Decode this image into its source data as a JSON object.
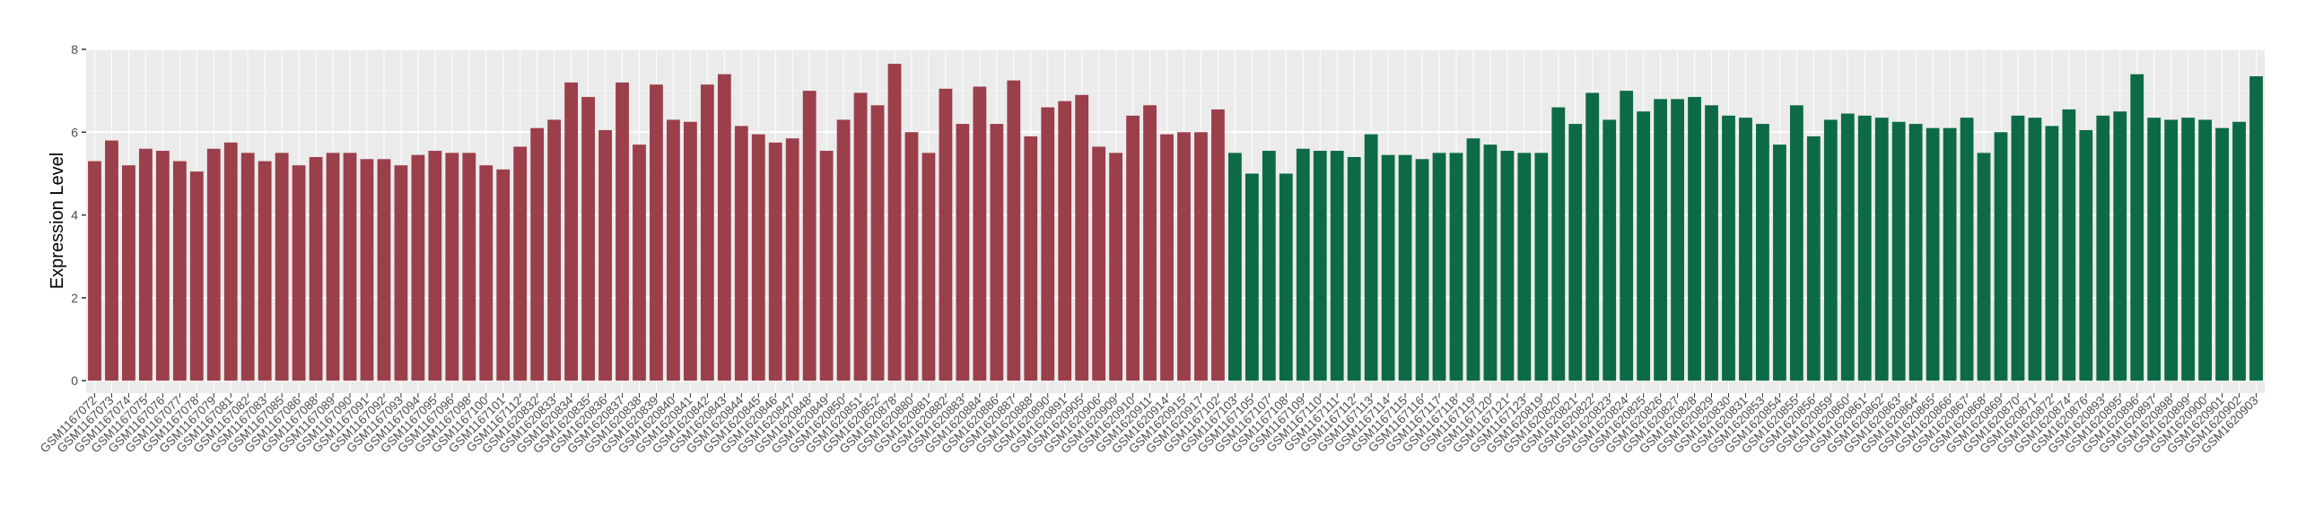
{
  "chart_data": {
    "type": "bar",
    "ylabel": "Expression Level",
    "xlabel": "",
    "ylim": [
      -0.3,
      8
    ],
    "yticks": [
      0,
      2,
      4,
      6,
      8
    ],
    "grid": true,
    "legend": "none",
    "group_colors": [
      "#9b3f4b",
      "#0c6b45"
    ],
    "categories": [
      "GSM1167072",
      "GSM1167073",
      "GSM1167074",
      "GSM1167075",
      "GSM1167076",
      "GSM1167077",
      "GSM1167078",
      "GSM1167079",
      "GSM1167081",
      "GSM1167082",
      "GSM1167083",
      "GSM1167085",
      "GSM1167086",
      "GSM1167088",
      "GSM1167089",
      "GSM1167090",
      "GSM1167091",
      "GSM1167092",
      "GSM1167093",
      "GSM1167094",
      "GSM1167095",
      "GSM1167096",
      "GSM1167098",
      "GSM1167100",
      "GSM1167101",
      "GSM1167112",
      "GSM1620832",
      "GSM1620833",
      "GSM1620834",
      "GSM1620835",
      "GSM1620836",
      "GSM1620837",
      "GSM1620838",
      "GSM1620839",
      "GSM1620840",
      "GSM1620841",
      "GSM1620842",
      "GSM1620843",
      "GSM1620844",
      "GSM1620845",
      "GSM1620846",
      "GSM1620847",
      "GSM1620848",
      "GSM1620849",
      "GSM1620850",
      "GSM1620851",
      "GSM1620852",
      "GSM1620878",
      "GSM1620880",
      "GSM1620881",
      "GSM1620882",
      "GSM1620883",
      "GSM1620884",
      "GSM1620886",
      "GSM1620887",
      "GSM1620888",
      "GSM1620890",
      "GSM1620891",
      "GSM1620905",
      "GSM1620906",
      "GSM1620909",
      "GSM1620910",
      "GSM1620911",
      "GSM1620914",
      "GSM1620915",
      "GSM1620917",
      "GSM1167102",
      "GSM1167103",
      "GSM1167105",
      "GSM1167107",
      "GSM1167108",
      "GSM1167109",
      "GSM1167110",
      "GSM1167111",
      "GSM1167112",
      "GSM1167113",
      "GSM1167114",
      "GSM1167115",
      "GSM1167116",
      "GSM1167117",
      "GSM1167118",
      "GSM1167119",
      "GSM1167120",
      "GSM1167121",
      "GSM1167123",
      "GSM1620819",
      "GSM1620820",
      "GSM1620821",
      "GSM1620822",
      "GSM1620823",
      "GSM1620824",
      "GSM1620825",
      "GSM1620826",
      "GSM1620827",
      "GSM1620828",
      "GSM1620829",
      "GSM1620830",
      "GSM1620831",
      "GSM1620853",
      "GSM1620854",
      "GSM1620855",
      "GSM1620856",
      "GSM1620859",
      "GSM1620860",
      "GSM1620861",
      "GSM1620862",
      "GSM1620863",
      "GSM1620864",
      "GSM1620865",
      "GSM1620866",
      "GSM1620867",
      "GSM1620868",
      "GSM1620869",
      "GSM1620870",
      "GSM1620871",
      "GSM1620872",
      "GSM1620874",
      "GSM1620876",
      "GSM1620893",
      "GSM1620895",
      "GSM1620896",
      "GSM1620897",
      "GSM1620898",
      "GSM1620899",
      "GSM1620900",
      "GSM1620901",
      "GSM1620902",
      "GSM1620903"
    ],
    "values": [
      5.3,
      5.8,
      5.2,
      5.6,
      5.55,
      5.3,
      5.05,
      5.6,
      5.75,
      5.5,
      5.3,
      5.5,
      5.2,
      5.4,
      5.5,
      5.5,
      5.35,
      5.35,
      5.2,
      5.45,
      5.55,
      5.5,
      5.5,
      5.2,
      5.1,
      5.65,
      6.1,
      6.3,
      7.2,
      6.85,
      6.05,
      7.2,
      5.7,
      7.15,
      6.3,
      6.25,
      7.15,
      7.4,
      6.15,
      5.95,
      5.75,
      5.85,
      7.0,
      5.55,
      6.3,
      6.95,
      6.65,
      7.65,
      6.0,
      5.5,
      7.05,
      6.2,
      7.1,
      6.2,
      7.25,
      5.9,
      6.6,
      6.75,
      6.9,
      5.65,
      5.5,
      6.4,
      6.65,
      5.95,
      6.0,
      6.0,
      6.55,
      5.5,
      5.0,
      5.55,
      5.0,
      5.6,
      5.55,
      5.55,
      5.4,
      5.95,
      5.45,
      5.45,
      5.35,
      5.5,
      5.5,
      5.85,
      5.7,
      5.55,
      5.5,
      5.5,
      6.6,
      6.2,
      6.95,
      6.3,
      7.0,
      6.5,
      6.8,
      6.8,
      6.85,
      6.65,
      6.4,
      6.35,
      6.2,
      5.7,
      6.65,
      5.9,
      6.3,
      6.45,
      6.4,
      6.35,
      6.25,
      6.2,
      6.1,
      6.1,
      6.35,
      5.5,
      6.0,
      6.4,
      6.35,
      6.15,
      6.55,
      6.05,
      6.4,
      6.5,
      7.4,
      6.35,
      6.3,
      6.35,
      6.3,
      6.1,
      6.25,
      7.35
    ],
    "groups": [
      0,
      0,
      0,
      0,
      0,
      0,
      0,
      0,
      0,
      0,
      0,
      0,
      0,
      0,
      0,
      0,
      0,
      0,
      0,
      0,
      0,
      0,
      0,
      0,
      0,
      0,
      0,
      0,
      0,
      0,
      0,
      0,
      0,
      0,
      0,
      0,
      0,
      0,
      0,
      0,
      0,
      0,
      0,
      0,
      0,
      0,
      0,
      0,
      0,
      0,
      0,
      0,
      0,
      0,
      0,
      0,
      0,
      0,
      0,
      0,
      0,
      0,
      0,
      0,
      0,
      0,
      0,
      1,
      1,
      1,
      1,
      1,
      1,
      1,
      1,
      1,
      1,
      1,
      1,
      1,
      1,
      1,
      1,
      1,
      1,
      1,
      1,
      1,
      1,
      1,
      1,
      1,
      1,
      1,
      1,
      1,
      1,
      1,
      1,
      1,
      1,
      1,
      1,
      1,
      1,
      1,
      1,
      1,
      1,
      1,
      1,
      1,
      1,
      1,
      1,
      1,
      1,
      1,
      1,
      1,
      1,
      1,
      1,
      1,
      1,
      1,
      1,
      1
    ]
  }
}
